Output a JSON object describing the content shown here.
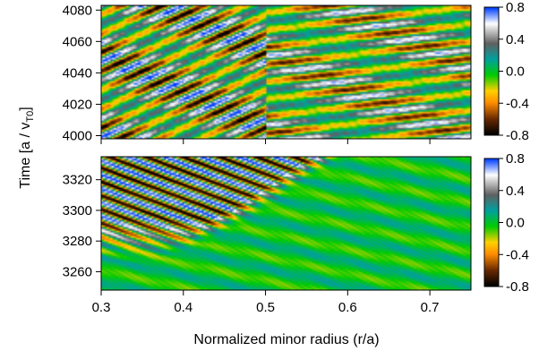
{
  "chart_data": [
    {
      "type": "heatmap",
      "panel": "top",
      "xlabel": "Normalized minor radius (r/a)",
      "ylabel": "Time [a / v",
      "ylabel_sub": "T0",
      "ylabel_close": "]",
      "xlim": [
        0.3,
        0.75
      ],
      "ylim": [
        3998,
        4083
      ],
      "y_ticks": [
        4000,
        4020,
        4040,
        4060,
        4080
      ],
      "y_tick_labels": [
        "4000",
        "4020",
        "4040",
        "4060",
        "4080"
      ],
      "x_ticks": [
        0.3,
        0.4,
        0.5,
        0.6,
        0.7
      ],
      "colorbar": {
        "range": [
          -0.8,
          0.8
        ],
        "ticks": [
          0.8,
          0.4,
          0.0,
          -0.4,
          -0.8
        ],
        "tick_labels": [
          "0.8",
          "0.4",
          "0.0",
          "-0.4",
          "-0.8"
        ],
        "colormap": [
          "#000000",
          "#6b2a00",
          "#ff8c00",
          "#ffd000",
          "#00cc00",
          "#00a0a0",
          "#606060",
          "#ffffff",
          "#0040ff"
        ]
      },
      "description_pattern": {
        "bands": [
          {
            "x_start": 0.3,
            "x_end": 0.5,
            "tilt_time_per_unit_r": 240,
            "period": 12,
            "amplitude": 0.75
          },
          {
            "x_start": 0.5,
            "x_end": 0.75,
            "tilt_time_per_unit_r": 60,
            "period": 11,
            "amplitude": 0.6
          }
        ]
      }
    },
    {
      "type": "heatmap",
      "panel": "bottom",
      "xlim": [
        0.3,
        0.75
      ],
      "ylim": [
        3248,
        3335
      ],
      "y_ticks": [
        3260,
        3280,
        3300,
        3320
      ],
      "y_tick_labels": [
        "3260",
        "3280",
        "3300",
        "3320"
      ],
      "x_ticks": [
        0.3,
        0.4,
        0.5,
        0.6,
        0.7
      ],
      "x_tick_labels": [
        "0.3",
        "0.4",
        "0.5",
        "0.6",
        "0.7"
      ],
      "colorbar": {
        "range": [
          -0.8,
          0.8
        ],
        "ticks": [
          0.8,
          0.4,
          0.0,
          -0.4,
          -0.8
        ],
        "tick_labels": [
          "0.8",
          "0.4",
          "0.0",
          "-0.4",
          "-0.8"
        ]
      },
      "description_pattern": {
        "front": "strong oscillations only in upper-left wedge, weak elsewhere",
        "tilt_time_per_unit_r": -200,
        "period": 9,
        "amplitude": 0.8
      }
    }
  ]
}
